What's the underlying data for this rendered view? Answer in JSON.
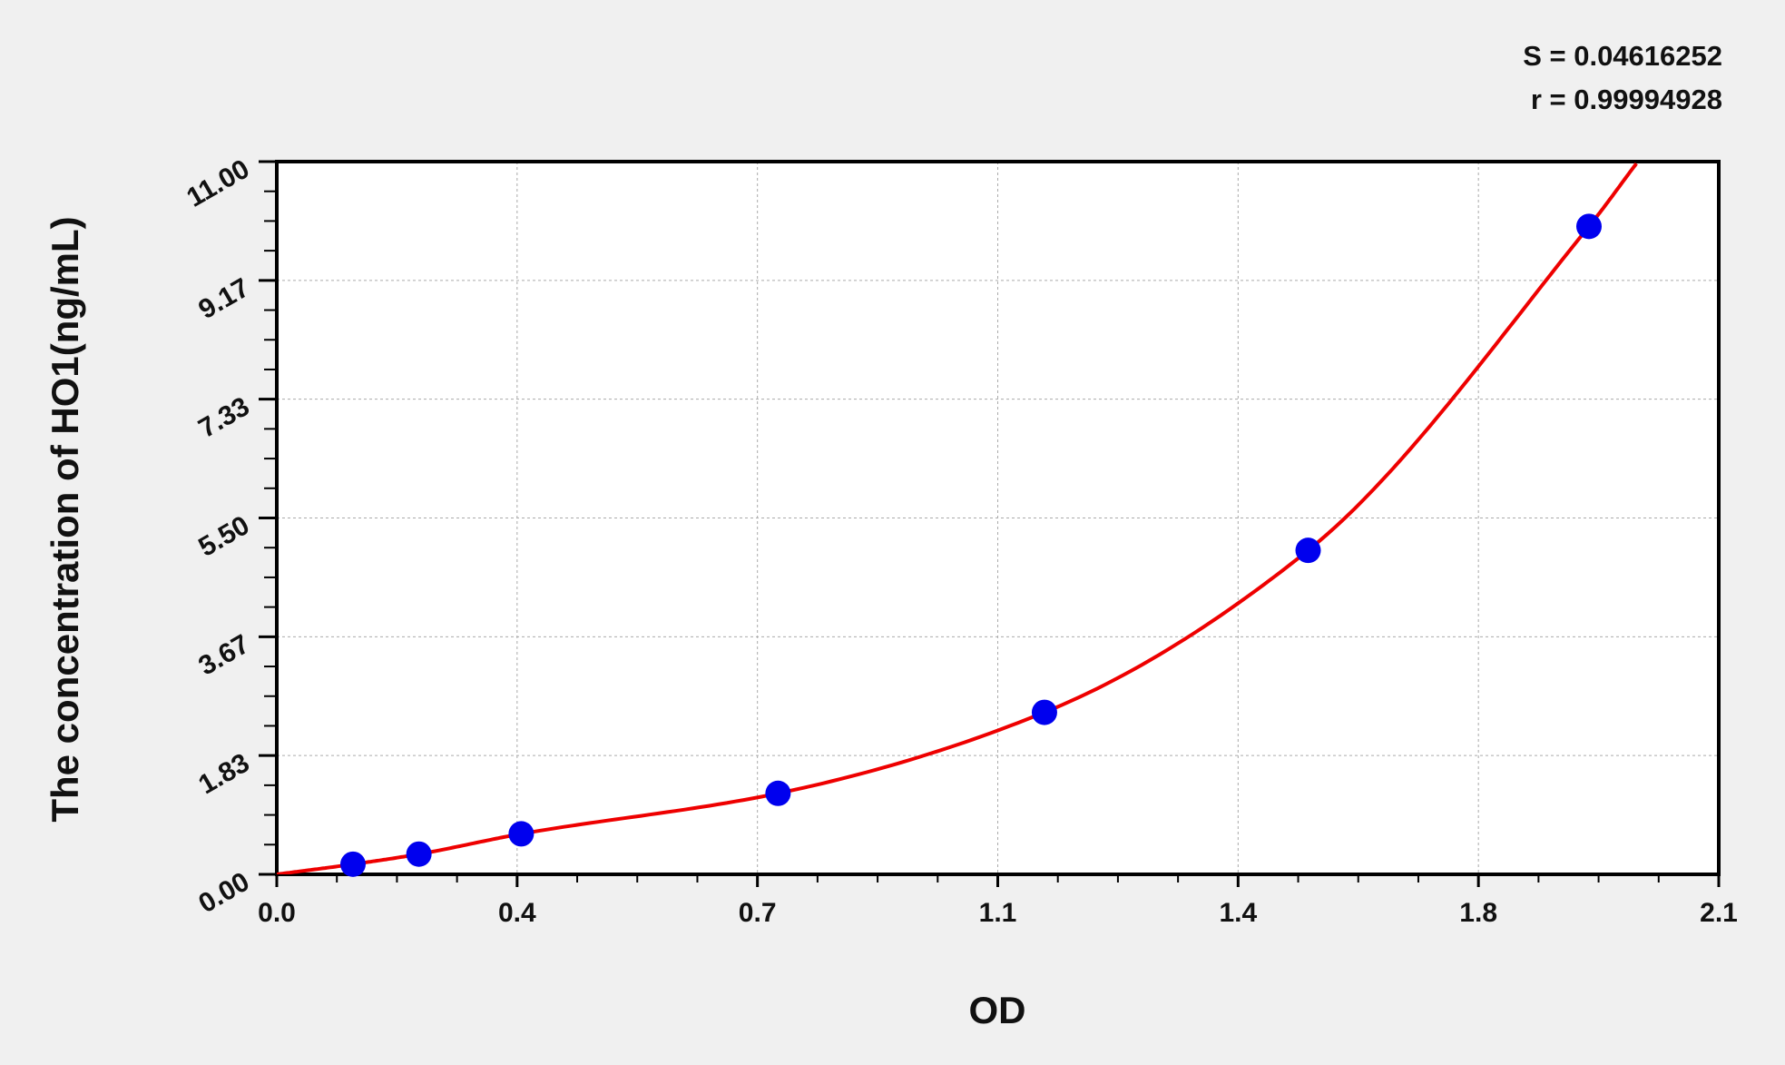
{
  "chart_data": {
    "type": "scatter",
    "title": "",
    "xlabel": "OD",
    "ylabel": "The concentration of HO1(ng/mL)",
    "xlim": [
      0.0,
      2.1
    ],
    "ylim": [
      0.0,
      11.0
    ],
    "x_ticks": [
      "0.0",
      "0.4",
      "0.7",
      "1.1",
      "1.4",
      "1.8",
      "2.1"
    ],
    "y_ticks": [
      "0.00",
      "1.83",
      "3.67",
      "5.50",
      "7.33",
      "9.17",
      "11.00"
    ],
    "grid": true,
    "points": [
      {
        "x": 0.111,
        "y": 0.156
      },
      {
        "x": 0.207,
        "y": 0.312
      },
      {
        "x": 0.356,
        "y": 0.625
      },
      {
        "x": 0.73,
        "y": 1.25
      },
      {
        "x": 1.118,
        "y": 2.5
      },
      {
        "x": 1.502,
        "y": 5.0
      },
      {
        "x": 1.911,
        "y": 10.0
      }
    ],
    "fit_curve_color": "#ee0000",
    "point_color": "#0000ee",
    "annotations": {
      "s": "S = 0.04616252",
      "r": "r = 0.99994928"
    }
  }
}
